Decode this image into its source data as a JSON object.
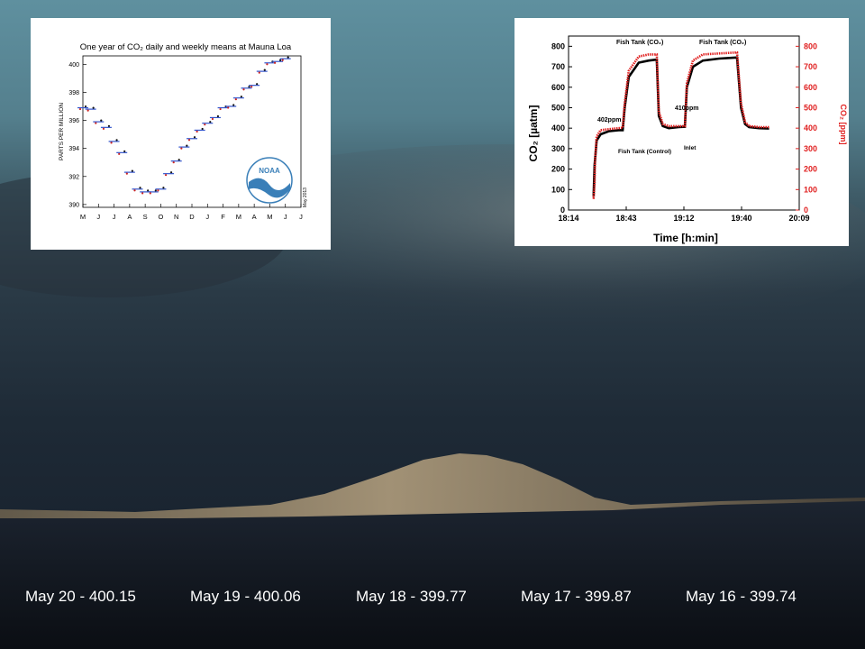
{
  "readings": [
    {
      "date": "May 20",
      "value": "400.15",
      "text": "May 20 - 400.15"
    },
    {
      "date": "May 19",
      "value": "400.06",
      "text": "May 19 - 400.06"
    },
    {
      "date": "May 18",
      "value": "399.77",
      "text": "May 18 - 399.77"
    },
    {
      "date": "May 17",
      "value": "399.87",
      "text": "May 17 - 399.87"
    },
    {
      "date": "May 16",
      "value": "399.74",
      "text": "May 16 - 399.74"
    }
  ],
  "chart_data": [
    {
      "type": "scatter",
      "title": "One year of CO₂ daily and weekly means at Mauna Loa",
      "ylabel": "PARTS PER MILLION",
      "xlabel": "",
      "x_ticks": [
        "M",
        "J",
        "J",
        "A",
        "S",
        "O",
        "N",
        "D",
        "J",
        "F",
        "M",
        "A",
        "M",
        "J",
        "J"
      ],
      "y_ticks": [
        390,
        392,
        394,
        396,
        398,
        400
      ],
      "xlim": [
        0,
        14
      ],
      "ylim": [
        389.8,
        400.6
      ],
      "series": [
        {
          "x": [
            0,
            0.5,
            1,
            1.5,
            2,
            2.5,
            3,
            3.5,
            4,
            4.5,
            5,
            5.5,
            6,
            6.5,
            7,
            7.5,
            8,
            8.5,
            9,
            9.5,
            10,
            10.5,
            11,
            11.5,
            12,
            12.5,
            13
          ],
          "y": [
            396.9,
            396.8,
            395.9,
            395.5,
            394.5,
            393.7,
            392.3,
            391.1,
            390.9,
            390.9,
            391.1,
            392.2,
            393.1,
            394.1,
            394.7,
            395.3,
            395.8,
            396.2,
            396.9,
            397.0,
            397.6,
            398.3,
            398.5,
            399.5,
            400.1,
            400.2,
            400.4
          ]
        }
      ],
      "annotations": [
        "NOAA",
        "May 2013"
      ]
    },
    {
      "type": "line",
      "xlabel": "Time [h:min]",
      "ylabel": "CO₂ [µatm]",
      "y2label": "CO₂ [ppm]",
      "x_ticks": [
        "18:14",
        "18:43",
        "19:12",
        "19:40",
        "20:09"
      ],
      "y_ticks": [
        0,
        100,
        200,
        300,
        400,
        500,
        600,
        700,
        800
      ],
      "y2_ticks": [
        0,
        100,
        200,
        300,
        400,
        500,
        600,
        700,
        800
      ],
      "xlim": [
        0,
        115
      ],
      "ylim": [
        0,
        850
      ],
      "series": [
        {
          "x": [
            12,
            12.5,
            13,
            14,
            16,
            20,
            25,
            27,
            28,
            30,
            35,
            40,
            44,
            45,
            47,
            50,
            55,
            58,
            59,
            62,
            67,
            75,
            84,
            86,
            88,
            90,
            95,
            100
          ],
          "y": [
            70,
            70,
            220,
            340,
            370,
            385,
            390,
            390,
            500,
            650,
            720,
            730,
            735,
            460,
            410,
            400,
            405,
            407,
            600,
            700,
            730,
            740,
            745,
            500,
            420,
            405,
            400,
            398
          ]
        },
        {
          "x": [
            12,
            12.5,
            13,
            13.2,
            14,
            16,
            20,
            25,
            27,
            28,
            30,
            35,
            40,
            44,
            45,
            47,
            50,
            55,
            58,
            59,
            62,
            67,
            75,
            84,
            86,
            88,
            90,
            95,
            100
          ],
          "y": [
            60,
            60,
            130,
            240,
            360,
            390,
            395,
            400,
            402,
            520,
            680,
            750,
            760,
            760,
            480,
            420,
            410,
            410,
            410,
            620,
            730,
            760,
            765,
            770,
            520,
            430,
            410,
            405,
            405
          ]
        }
      ],
      "annotations": [
        "Fish Tank (CO₂)",
        "Fish Tank (CO₂)",
        "402ppm",
        "410ppm",
        "Fish Tank (Control)",
        "Inlet"
      ],
      "colors": {
        "left_axis": "#000000",
        "right_axis": "#e02020"
      }
    }
  ],
  "colors": {
    "sky_top": "#5d8f9e",
    "ground": "#121820",
    "mountain": "#b8a27e"
  }
}
